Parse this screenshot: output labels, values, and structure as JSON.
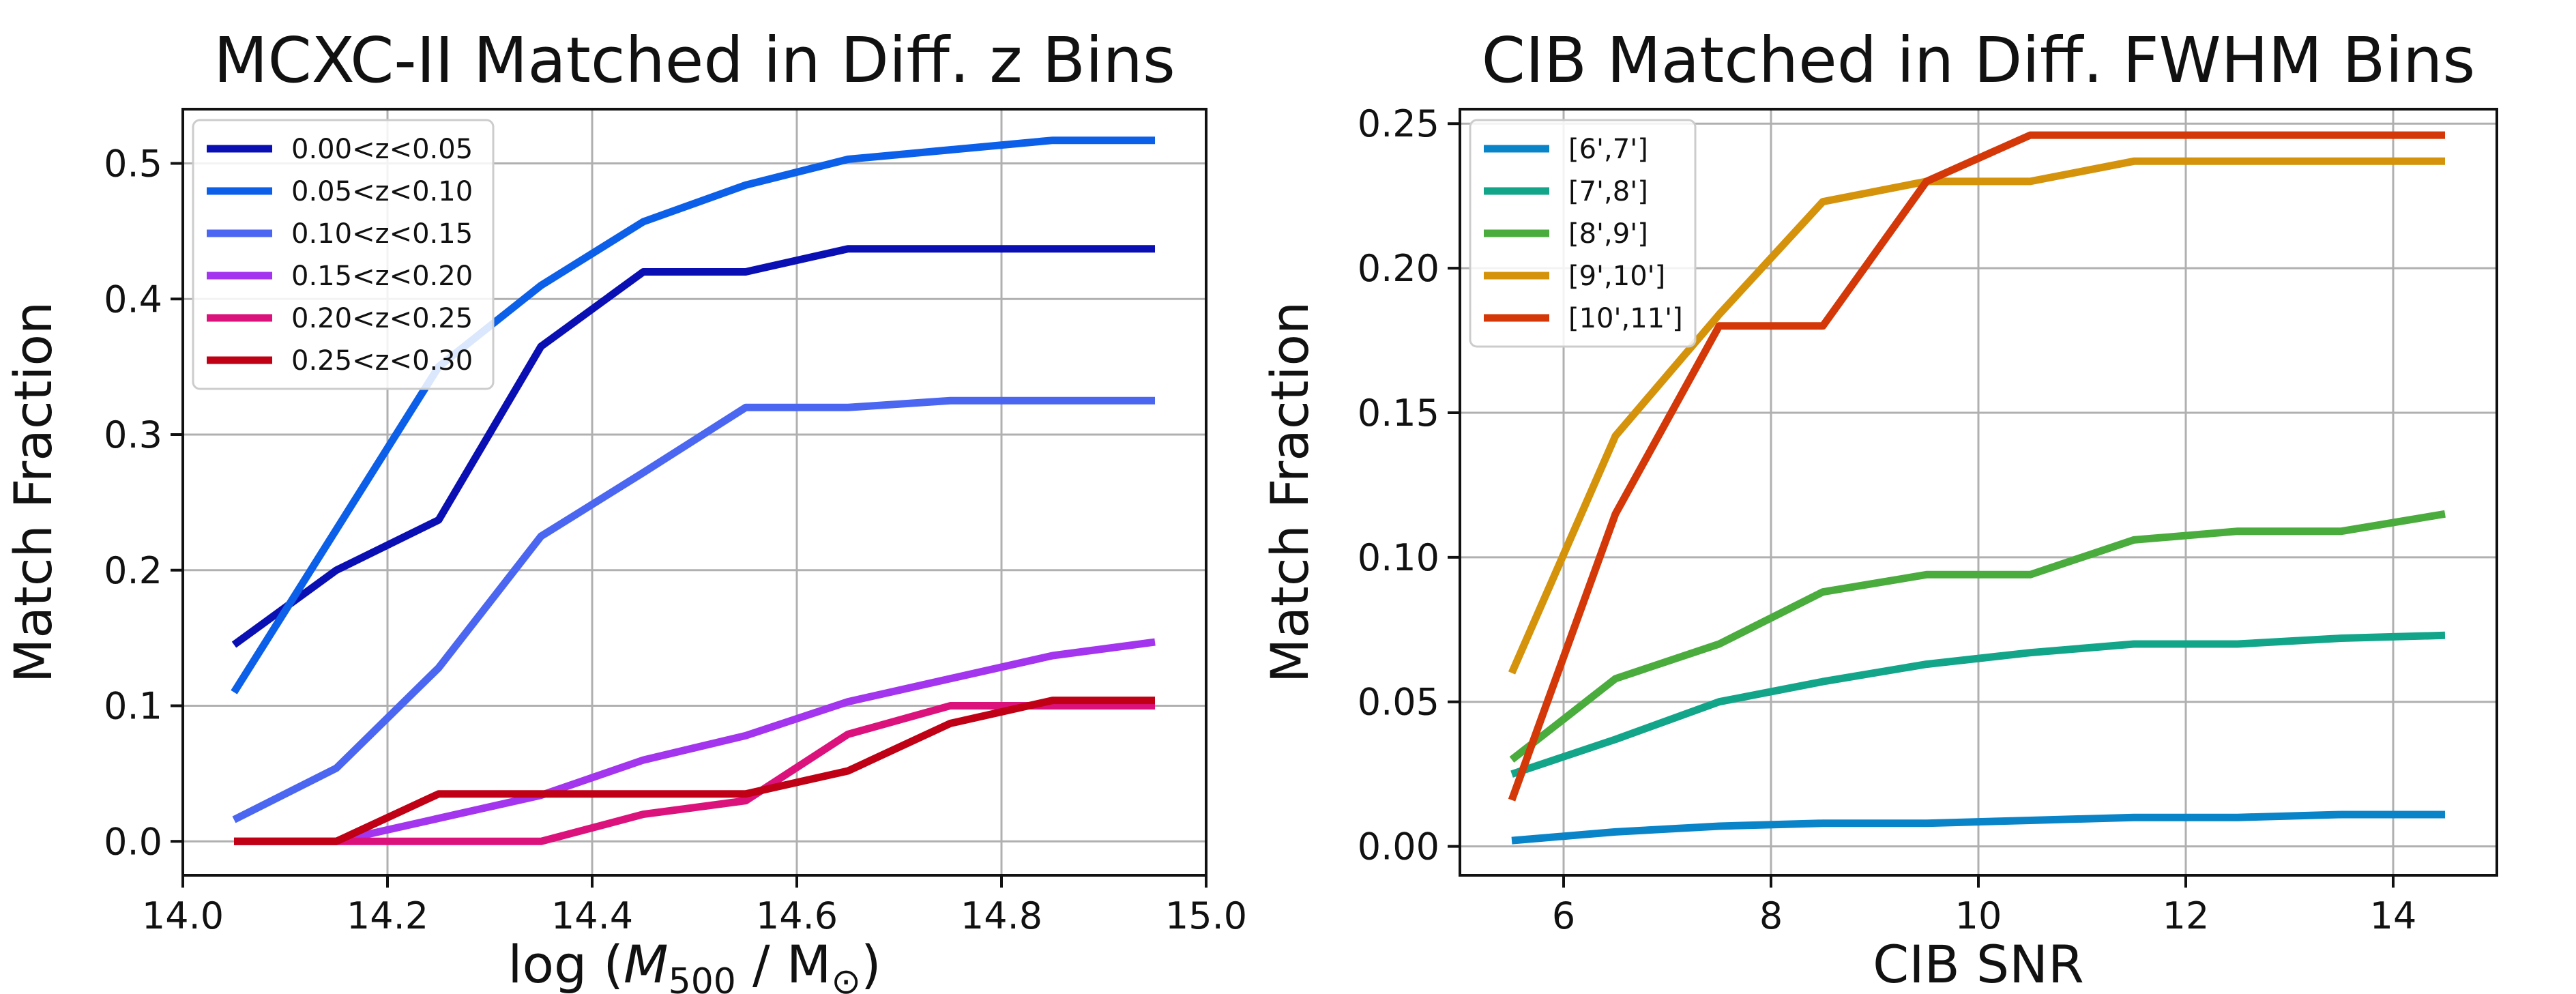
{
  "chart_data": [
    {
      "type": "line",
      "title": "MCXC-II Matched in Diff. z Bins",
      "xlabel": "log (M500 / M⊙)",
      "xlabel_parts": {
        "pre": "log (",
        "var": "M",
        "sub1": "500",
        "mid": " / M",
        "sub2": "⊙",
        "post": ")"
      },
      "ylabel": "Match Fraction",
      "xlim": [
        14.0,
        15.0
      ],
      "ylim": [
        -0.025,
        0.54
      ],
      "xticks": [
        14.0,
        14.2,
        14.4,
        14.6,
        14.8,
        15.0
      ],
      "xtick_labels": [
        "14.0",
        "14.2",
        "14.4",
        "14.6",
        "14.8",
        "15.0"
      ],
      "yticks": [
        0.0,
        0.1,
        0.2,
        0.3,
        0.4,
        0.5
      ],
      "ytick_labels": [
        "0.0",
        "0.1",
        "0.2",
        "0.3",
        "0.4",
        "0.5"
      ],
      "grid": true,
      "legend_position": "upper-left",
      "x": [
        14.05,
        14.15,
        14.25,
        14.35,
        14.45,
        14.55,
        14.65,
        14.75,
        14.85,
        14.95
      ],
      "series": [
        {
          "name": "0.00<z<0.05",
          "color": "#0a0fb4",
          "values": [
            0.145,
            0.2,
            0.237,
            0.365,
            0.42,
            0.42,
            0.437,
            0.437,
            0.437,
            0.437
          ]
        },
        {
          "name": "0.05<z<0.10",
          "color": "#0c5fe8",
          "values": [
            0.11,
            0.23,
            0.35,
            0.41,
            0.457,
            0.484,
            0.503,
            0.51,
            0.517,
            0.517
          ]
        },
        {
          "name": "0.10<z<0.15",
          "color": "#4b66f0",
          "values": [
            0.016,
            0.054,
            0.128,
            0.225,
            0.272,
            0.32,
            0.32,
            0.325,
            0.325,
            0.325
          ]
        },
        {
          "name": "0.15<z<0.20",
          "color": "#a335ee",
          "values": [
            0.0,
            0.0,
            0.017,
            0.034,
            0.06,
            0.078,
            0.103,
            0.12,
            0.137,
            0.147
          ]
        },
        {
          "name": "0.20<z<0.25",
          "color": "#dc127c",
          "values": [
            0.0,
            0.0,
            0.0,
            0.0,
            0.02,
            0.03,
            0.079,
            0.1,
            0.1,
            0.1
          ]
        },
        {
          "name": "0.25<z<0.30",
          "color": "#c00014",
          "values": [
            0.0,
            0.0,
            0.035,
            0.035,
            0.035,
            0.035,
            0.052,
            0.087,
            0.104,
            0.104
          ]
        }
      ]
    },
    {
      "type": "line",
      "title": "CIB Matched in Diff. FWHM Bins",
      "xlabel": "CIB SNR",
      "ylabel": "Match Fraction",
      "xlim": [
        5.0,
        15.0
      ],
      "ylim": [
        -0.01,
        0.255
      ],
      "xticks": [
        6,
        8,
        10,
        12,
        14
      ],
      "xtick_labels": [
        "6",
        "8",
        "10",
        "12",
        "14"
      ],
      "yticks": [
        0.0,
        0.05,
        0.1,
        0.15,
        0.2,
        0.25
      ],
      "ytick_labels": [
        "0.00",
        "0.05",
        "0.10",
        "0.15",
        "0.20",
        "0.25"
      ],
      "grid": true,
      "legend_position": "upper-left",
      "x": [
        5.5,
        6.5,
        7.5,
        8.5,
        9.5,
        10.5,
        11.5,
        12.5,
        13.5,
        14.5
      ],
      "series": [
        {
          "name": "[6',7']",
          "color": "#0a84c8",
          "values": [
            0.002,
            0.005,
            0.007,
            0.008,
            0.008,
            0.009,
            0.01,
            0.01,
            0.011,
            0.011
          ]
        },
        {
          "name": "[7',8']",
          "color": "#12a58a",
          "values": [
            0.025,
            0.037,
            0.05,
            0.057,
            0.063,
            0.067,
            0.07,
            0.07,
            0.072,
            0.073
          ]
        },
        {
          "name": "[8',9']",
          "color": "#4aac3c",
          "values": [
            0.03,
            0.058,
            0.07,
            0.088,
            0.094,
            0.094,
            0.106,
            0.109,
            0.109,
            0.115
          ]
        },
        {
          "name": "[9',10']",
          "color": "#d4930a",
          "values": [
            0.06,
            0.142,
            0.184,
            0.223,
            0.23,
            0.23,
            0.237,
            0.237,
            0.237,
            0.237
          ]
        },
        {
          "name": "[10',11']",
          "color": "#d43808",
          "values": [
            0.016,
            0.115,
            0.18,
            0.18,
            0.23,
            0.246,
            0.246,
            0.246,
            0.246,
            0.246
          ]
        }
      ]
    }
  ]
}
